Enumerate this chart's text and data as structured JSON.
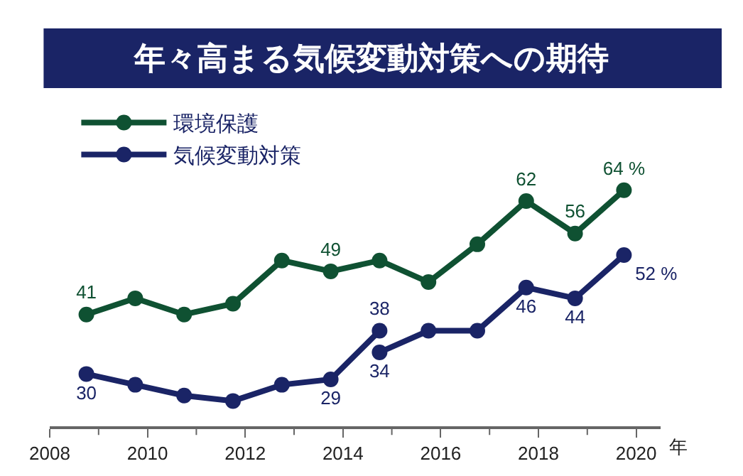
{
  "chart_data": {
    "type": "line",
    "title": "年々高まる気候変動対策への期待",
    "xlabel": "年",
    "series": [
      {
        "name": "環境保護",
        "color": "#0f5132",
        "x": [
          2008.75,
          2009.75,
          2010.75,
          2011.75,
          2012.75,
          2013.75,
          2014.75,
          2015.75,
          2016.75,
          2017.75,
          2018.75,
          2019.75
        ],
        "values": [
          41,
          44,
          41,
          43,
          51,
          49,
          51,
          47,
          54,
          62,
          56,
          64
        ],
        "value_labels": [
          "41",
          null,
          null,
          null,
          null,
          "49",
          null,
          null,
          null,
          "62",
          "56",
          "64 %"
        ]
      },
      {
        "name": "気候変動対策",
        "color": "#1a2466",
        "x": [
          2008.75,
          2009.75,
          2010.75,
          2011.75,
          2012.75,
          2013.75,
          2014.75
        ],
        "values": [
          30,
          28,
          26,
          25,
          28,
          29,
          38
        ],
        "value_labels": [
          "30",
          null,
          null,
          null,
          null,
          "29",
          "38"
        ]
      },
      {
        "color": "#1a2466",
        "x": [
          2014.75,
          2015.75,
          2016.75,
          2017.75,
          2018.75,
          2019.75
        ],
        "values": [
          34,
          38,
          38,
          46,
          44,
          52
        ],
        "value_labels": [
          "34",
          null,
          null,
          "46",
          "44",
          "52 %"
        ]
      }
    ],
    "xlim": [
      2008,
      2020.5
    ],
    "xticks": [
      2008,
      2010,
      2012,
      2014,
      2016,
      2018,
      2020
    ],
    "marker": "circle",
    "line_style": "solid",
    "legend": "top left",
    "grid": false
  }
}
